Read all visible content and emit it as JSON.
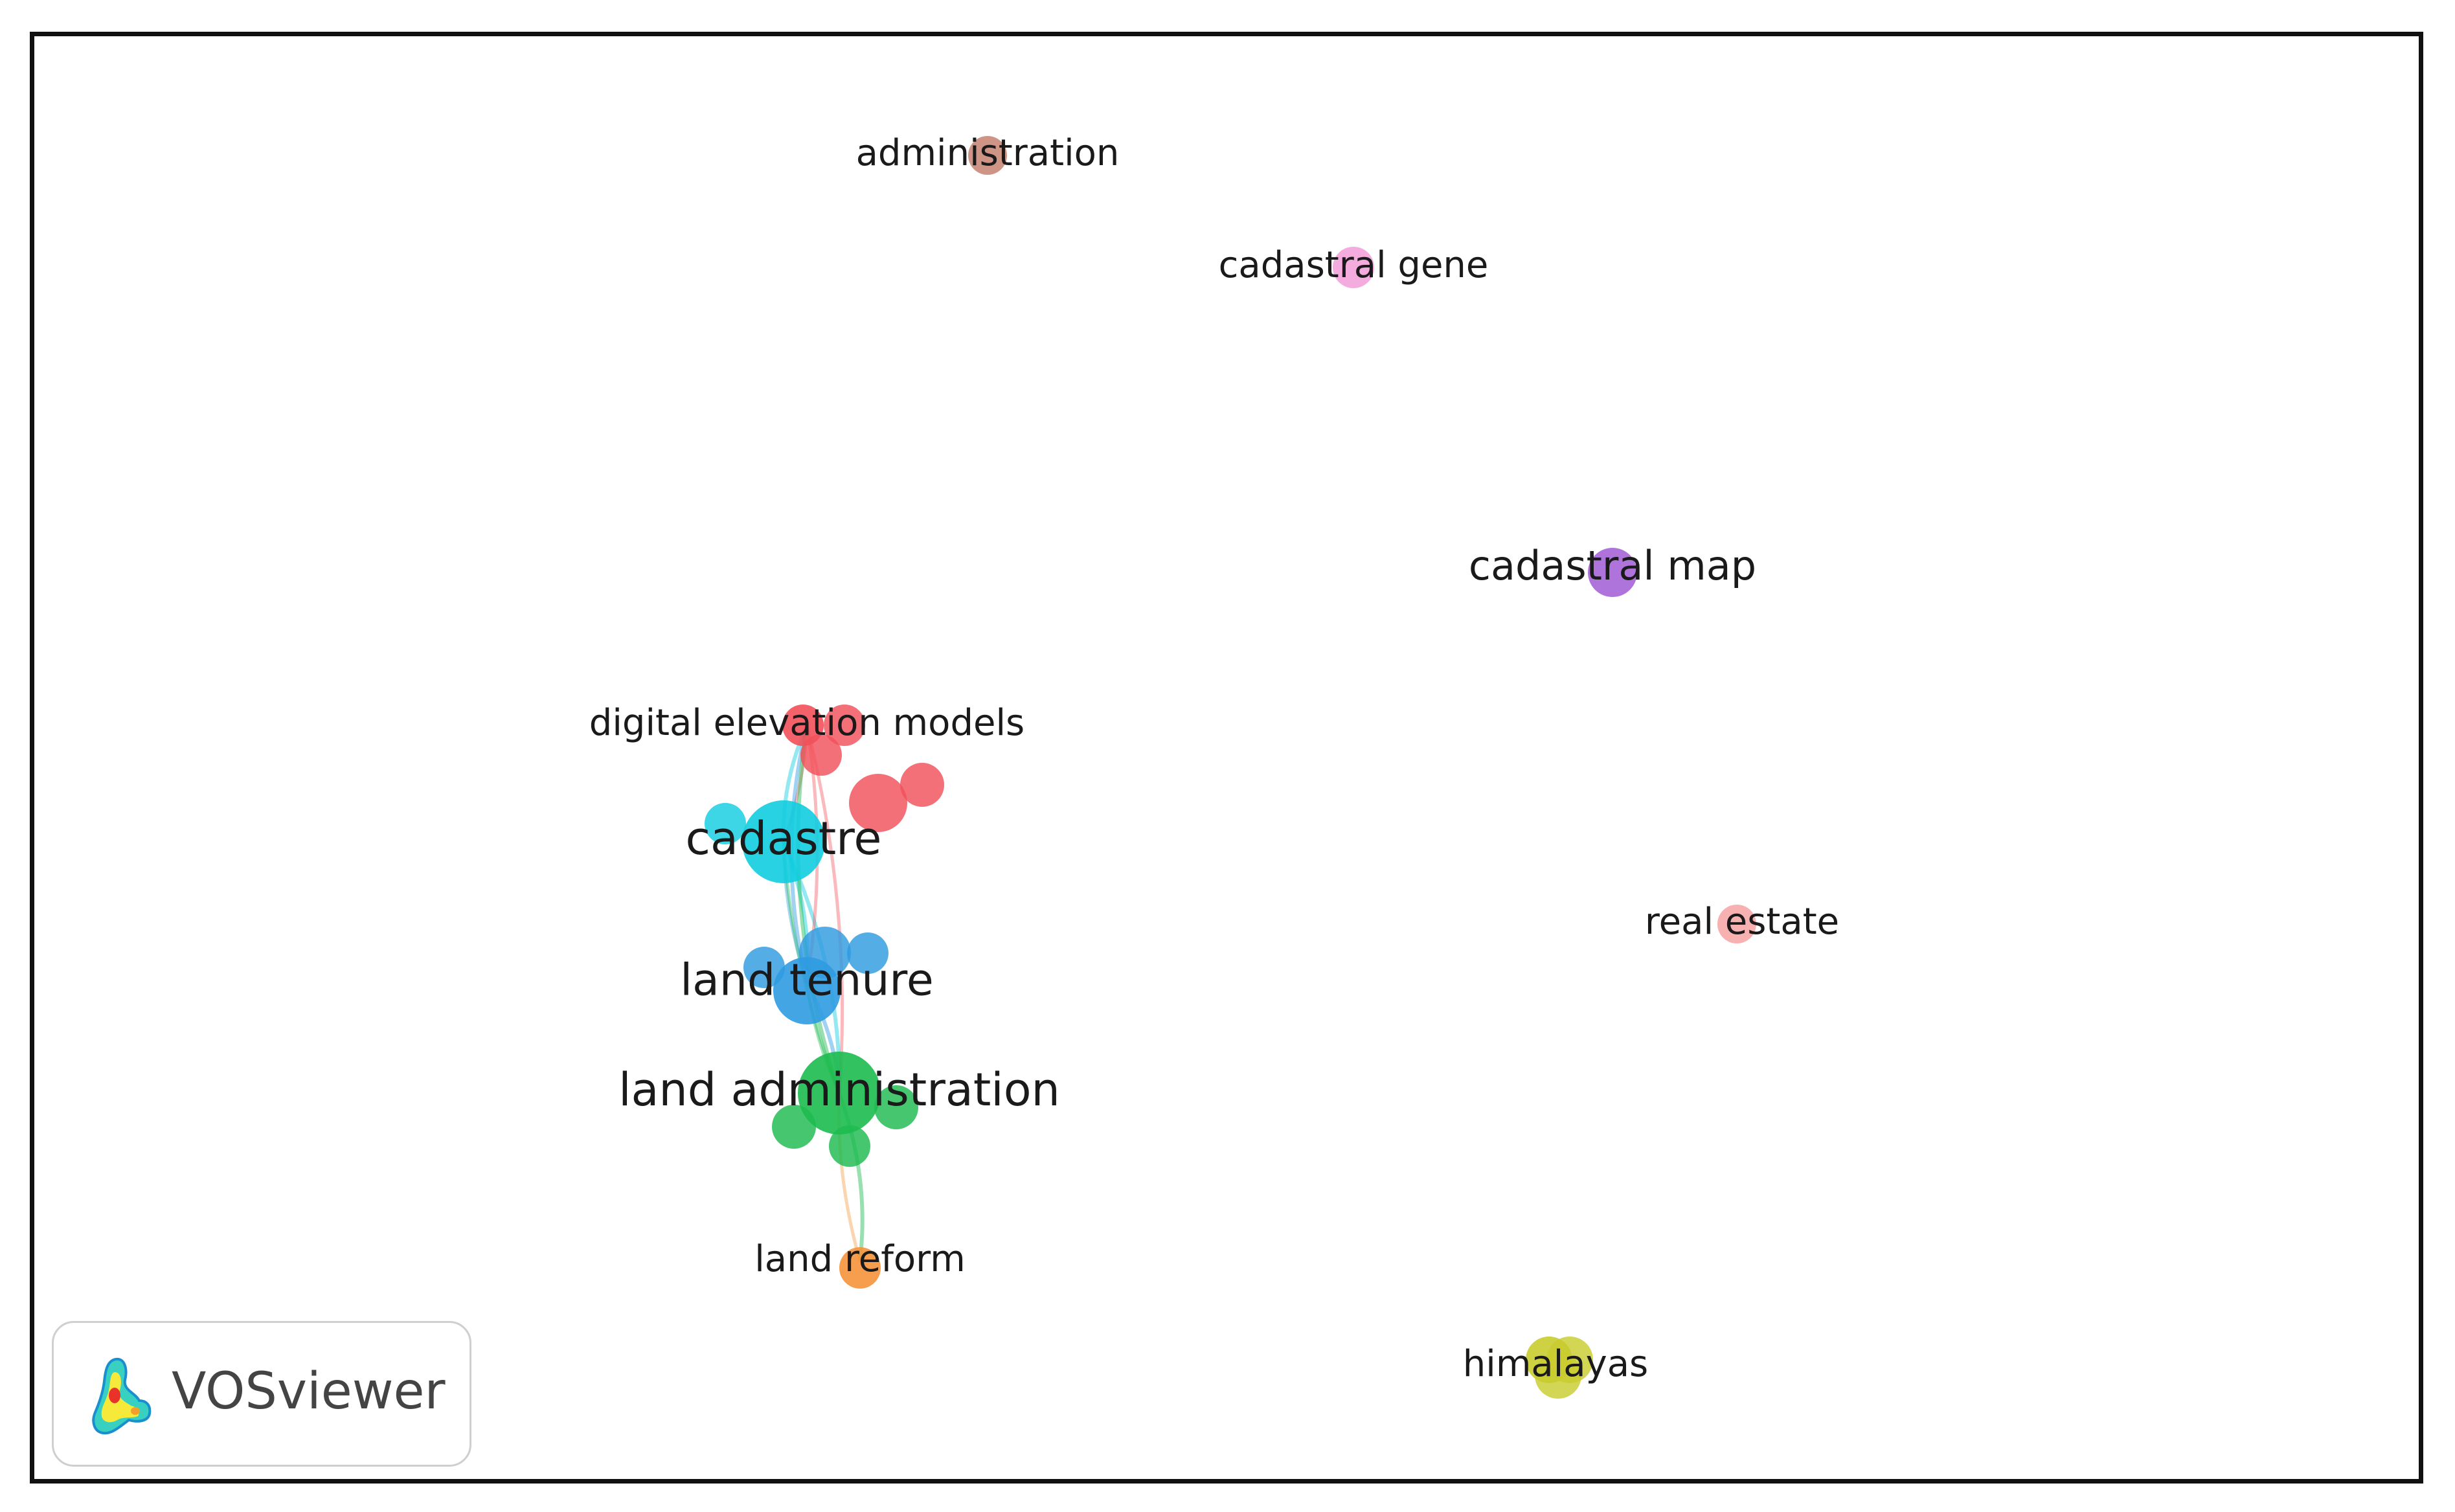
{
  "app": {
    "name": "VOSviewer"
  },
  "network": {
    "nodes": [
      {
        "id": "administration",
        "label": "administration",
        "cluster": "brown"
      },
      {
        "id": "cadastral_gene",
        "label": "cadastral gene",
        "cluster": "pink"
      },
      {
        "id": "cadastral_map",
        "label": "cadastral map",
        "cluster": "purple"
      },
      {
        "id": "digital_elevation_models",
        "label": "digital elevation models",
        "cluster": "red"
      },
      {
        "id": "cadastre",
        "label": "cadastre",
        "cluster": "cyan"
      },
      {
        "id": "land_tenure",
        "label": "land tenure",
        "cluster": "blue"
      },
      {
        "id": "land_administration",
        "label": "land administration",
        "cluster": "green"
      },
      {
        "id": "land_reform",
        "label": "land reform",
        "cluster": "orange"
      },
      {
        "id": "real_estate",
        "label": "real estate",
        "cluster": "salmon"
      },
      {
        "id": "himalayas",
        "label": "himalayas",
        "cluster": "olive"
      }
    ],
    "links": [
      {
        "source": "cadastre",
        "target": "land_tenure"
      },
      {
        "source": "cadastre",
        "target": "land_administration"
      },
      {
        "source": "cadastre",
        "target": "digital_elevation_models"
      },
      {
        "source": "land_tenure",
        "target": "land_administration"
      },
      {
        "source": "land_tenure",
        "target": "digital_elevation_models"
      },
      {
        "source": "land_administration",
        "target": "digital_elevation_models"
      },
      {
        "source": "land_administration",
        "target": "land_reform"
      }
    ]
  },
  "colors": {
    "brown": "#c98a7a",
    "pink": "#f3a3dc",
    "purple": "#a565d8",
    "red": "#f2515a",
    "cyan": "#11cde0",
    "blue": "#2f9be1",
    "green": "#1dbb4f",
    "orange": "#f5943a",
    "salmon": "#f7a9a9",
    "olive": "#c9cc2e"
  }
}
